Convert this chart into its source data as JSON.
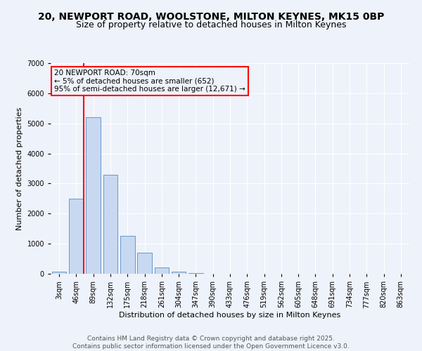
{
  "title_line1": "20, NEWPORT ROAD, WOOLSTONE, MILTON KEYNES, MK15 0BP",
  "title_line2": "Size of property relative to detached houses in Milton Keynes",
  "xlabel": "Distribution of detached houses by size in Milton Keynes",
  "ylabel": "Number of detached properties",
  "categories": [
    "3sqm",
    "46sqm",
    "89sqm",
    "132sqm",
    "175sqm",
    "218sqm",
    "261sqm",
    "304sqm",
    "347sqm",
    "390sqm",
    "433sqm",
    "476sqm",
    "519sqm",
    "562sqm",
    "605sqm",
    "648sqm",
    "691sqm",
    "734sqm",
    "777sqm",
    "820sqm",
    "863sqm"
  ],
  "bar_values": [
    60,
    2500,
    5200,
    3300,
    1250,
    700,
    200,
    80,
    15,
    5,
    2,
    1,
    0,
    0,
    0,
    0,
    0,
    0,
    0,
    0,
    0
  ],
  "bar_color": "#c8d8f0",
  "bar_edge_color": "#6699cc",
  "vline_x_index": 1,
  "vline_color": "red",
  "annotation_text": "20 NEWPORT ROAD: 70sqm\n← 5% of detached houses are smaller (652)\n95% of semi-detached houses are larger (12,671) →",
  "annotation_box_color": "red",
  "ylim": [
    0,
    7000
  ],
  "yticks": [
    0,
    1000,
    2000,
    3000,
    4000,
    5000,
    6000,
    7000
  ],
  "background_color": "#eef2fa",
  "grid_color": "#ffffff",
  "footer_line1": "Contains HM Land Registry data © Crown copyright and database right 2025.",
  "footer_line2": "Contains public sector information licensed under the Open Government Licence v3.0.",
  "title_fontsize": 10,
  "subtitle_fontsize": 9,
  "axis_label_fontsize": 8,
  "tick_fontsize": 7,
  "annotation_fontsize": 7.5,
  "footer_fontsize": 6.5
}
